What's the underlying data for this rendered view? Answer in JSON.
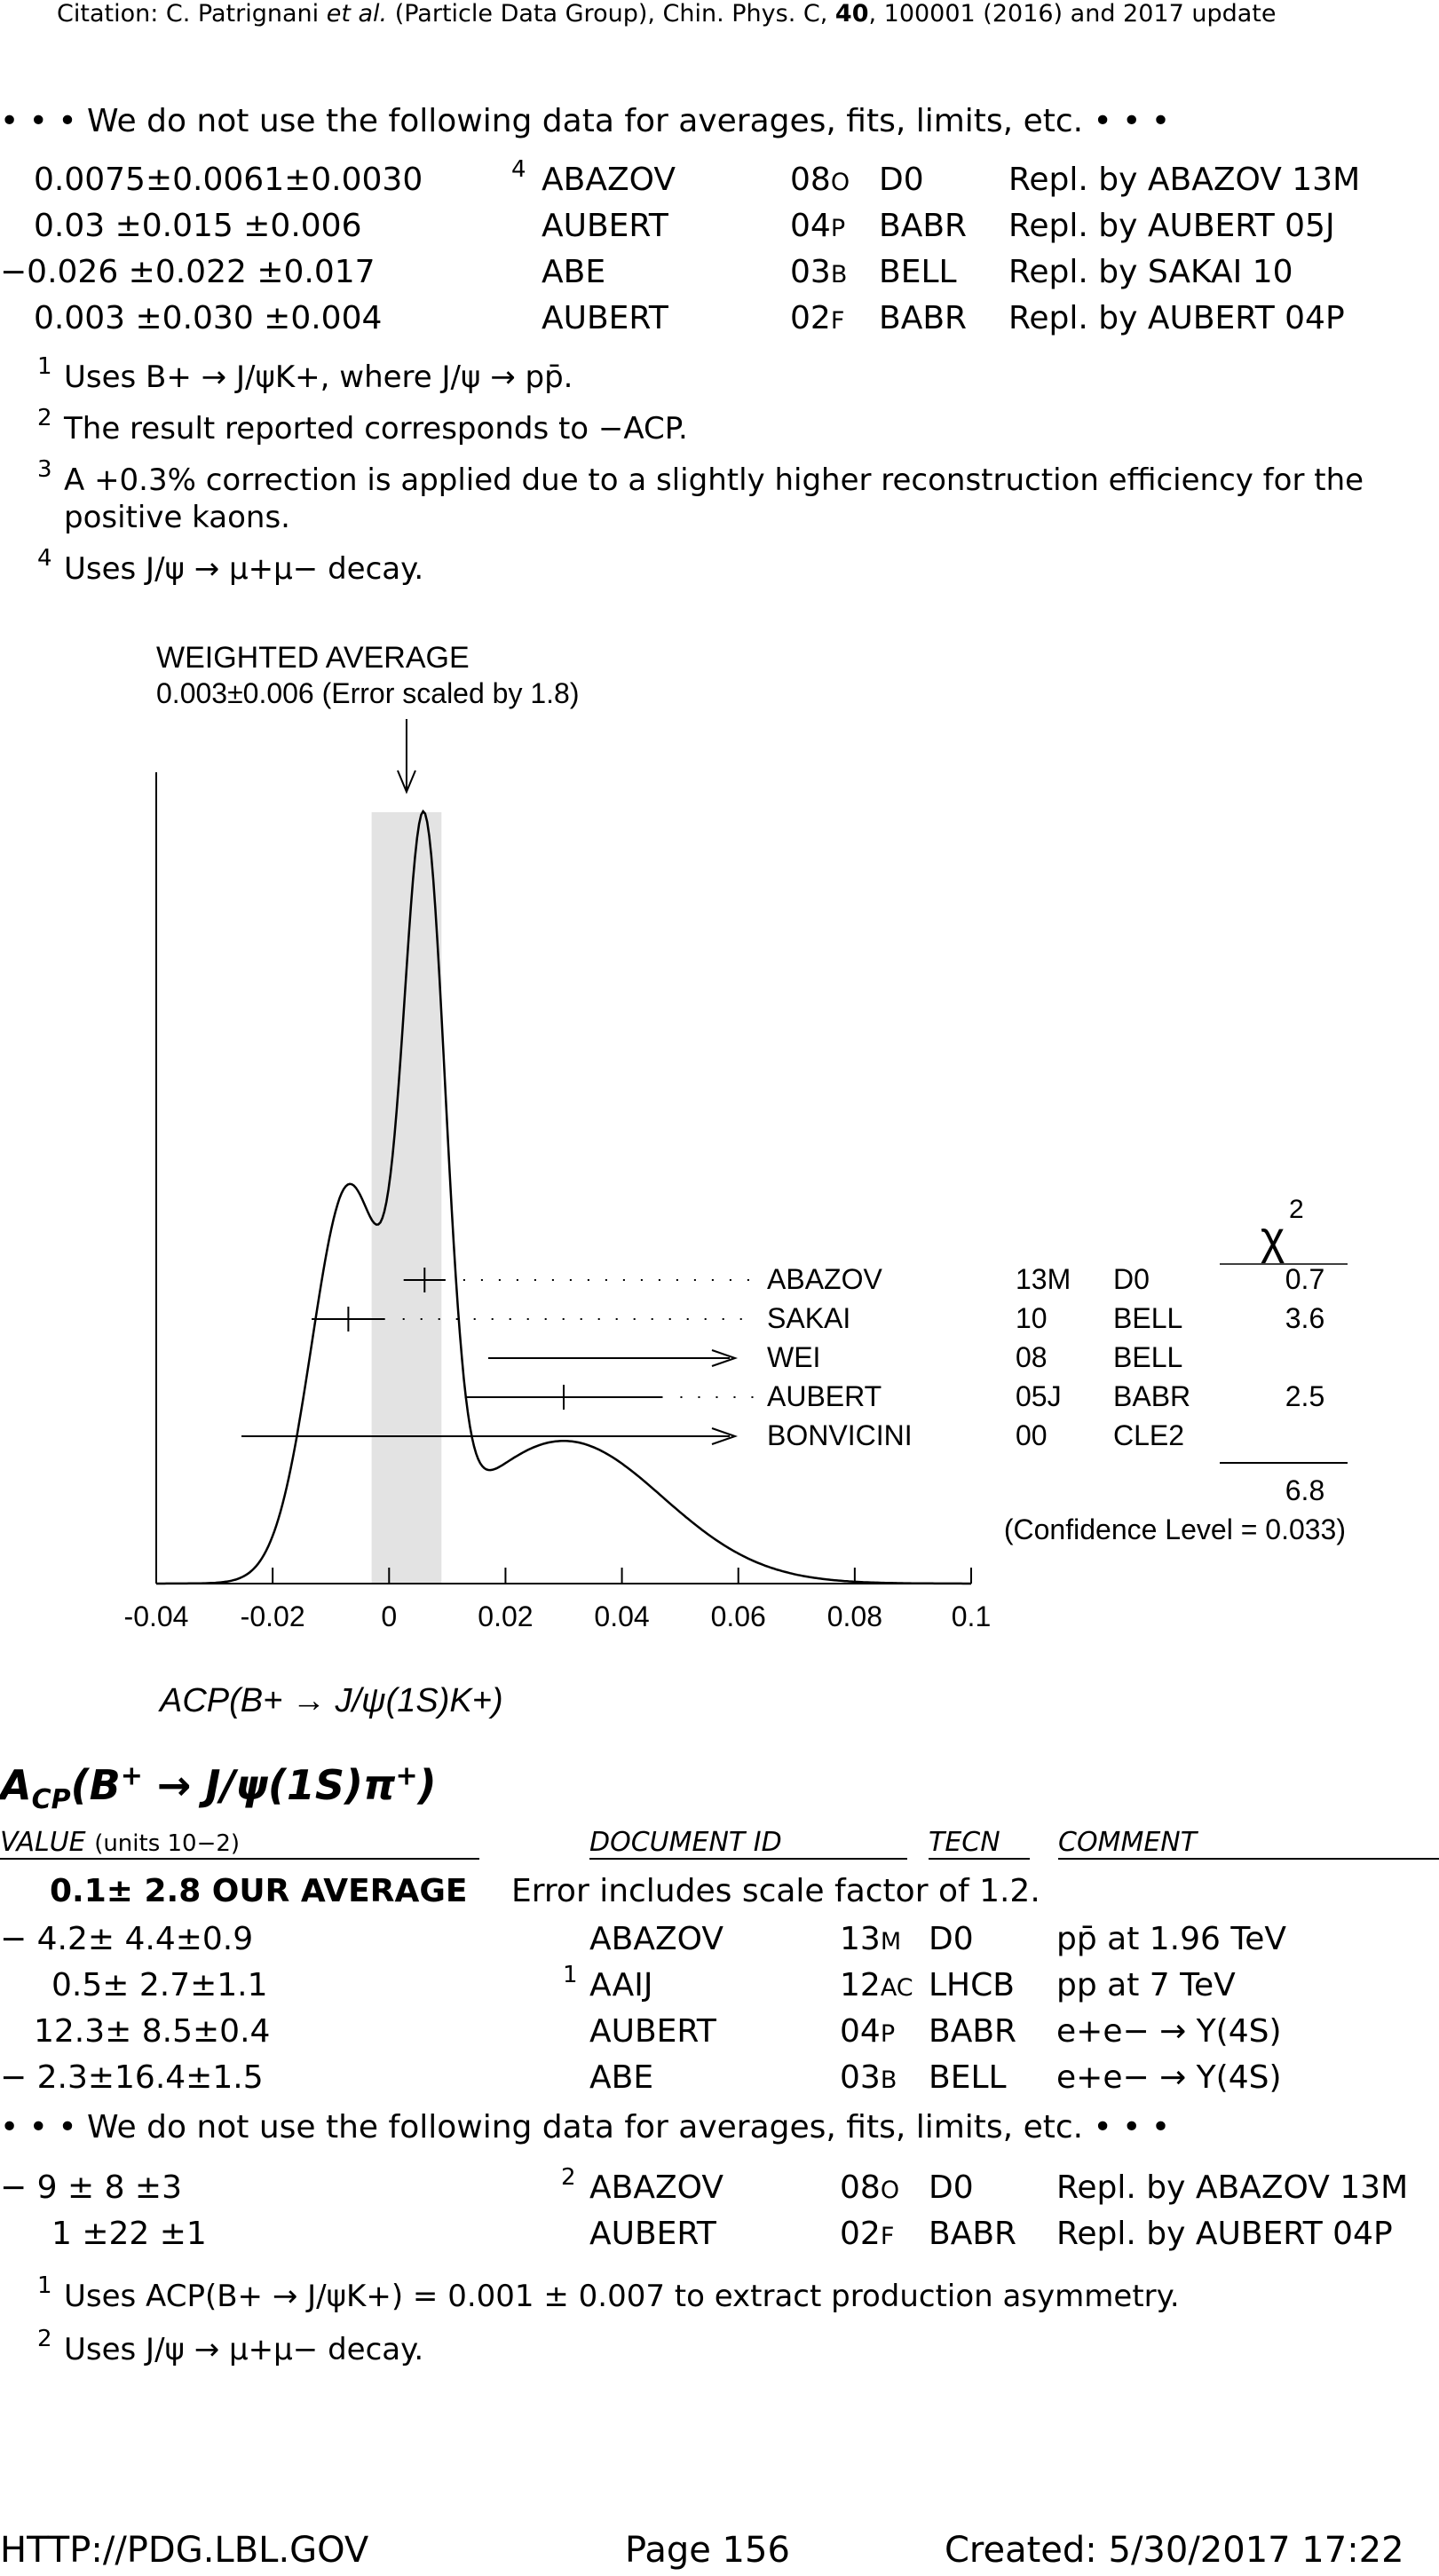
{
  "header": {
    "citation_prefix": "Citation: C. Patrignani ",
    "citation_etal": "et al.",
    "citation_mid": " (Particle Data Group), Chin. Phys. C, ",
    "citation_vol": "40",
    "citation_suffix": ", 100001 (2016) and 2017 update"
  },
  "section1": {
    "notused": "• • • We do not use the following data for averages, fits, limits, etc. • • •",
    "rows": [
      {
        "value": "0.0075±0.0061±0.0030",
        "note": "4",
        "author": "ABAZOV",
        "yr": "08",
        "ref": "O",
        "tecn": "D0",
        "comment": "Repl. by ABAZOV 13M"
      },
      {
        "value": "0.03   ±0.015 ±0.006",
        "note": "",
        "author": "AUBERT",
        "yr": "04",
        "ref": "P",
        "tecn": "BABR",
        "comment": "Repl. by AUBERT 05J"
      },
      {
        "value": "−0.026 ±0.022 ±0.017",
        "note": "",
        "author": "ABE",
        "yr": "03",
        "ref": "B",
        "tecn": "BELL",
        "comment": "Repl. by SAKAI 10"
      },
      {
        "value": "0.003 ±0.030 ±0.004",
        "note": "",
        "author": "AUBERT",
        "yr": "02",
        "ref": "F",
        "tecn": "BABR",
        "comment": "Repl. by AUBERT 04P"
      }
    ],
    "footnotes": [
      {
        "n": "1",
        "text": "Uses B+ → J/ψK+, where J/ψ → pp̄."
      },
      {
        "n": "2",
        "text": "The result reported corresponds to −ACP."
      },
      {
        "n": "3",
        "text": "A +0.3% correction is applied due to a slightly higher reconstruction efficiency for the"
      },
      {
        "n": "",
        "text": "positive kaons."
      },
      {
        "n": "4",
        "text": "Uses J/ψ → μ+μ− decay."
      }
    ]
  },
  "chart_data": {
    "type": "ideogram",
    "title": "WEIGHTED AVERAGE",
    "subtitle": "0.003±0.006 (Error scaled by 1.8)",
    "xlabel": "ACP(B+ → J/ψ(1S)K+)",
    "xlim": [
      -0.04,
      0.1
    ],
    "xticks": [
      "-0.04",
      "-0.02",
      "0",
      "0.02",
      "0.04",
      "0.06",
      "0.08",
      "0.1"
    ],
    "average": 0.003,
    "average_error": 0.006,
    "chi2_header": "χ2",
    "measurements": [
      {
        "author": "ABAZOV",
        "ref": "13M",
        "tecn": "D0",
        "value": 0.0061,
        "error": 0.0036,
        "chi2": "0.7"
      },
      {
        "author": "SAKAI",
        "ref": "10",
        "tecn": "BELL",
        "value": -0.007,
        "error": 0.0063,
        "chi2": "3.6"
      },
      {
        "author": "WEI",
        "ref": "08",
        "tecn": "BELL",
        "value": null,
        "error": null,
        "chi2": ""
      },
      {
        "author": "AUBERT",
        "ref": "05J",
        "tecn": "BABR",
        "value": 0.03,
        "error": 0.017,
        "chi2": "2.5"
      },
      {
        "author": "BONVICINI",
        "ref": "00",
        "tecn": "CLE2",
        "value": null,
        "error": null,
        "chi2": ""
      }
    ],
    "chi2_total": "6.8",
    "confidence_level": "(Confidence Level = 0.033)"
  },
  "section2": {
    "title": "ACP(B+ → J/ψ(1S)π+)",
    "col_value": "VALUE",
    "col_units": "(units 10−2)",
    "col_doc": "DOCUMENT ID",
    "col_tecn": "TECN",
    "col_comment": "COMMENT",
    "average_row": {
      "value": "0.1±  2.8 OUR AVERAGE",
      "comment": "Error includes scale factor of 1.2."
    },
    "rows": [
      {
        "value": "−  4.2±  4.4±0.9",
        "note": "",
        "author": "ABAZOV",
        "yr": "13",
        "ref": "M",
        "tecn": "D0",
        "comment": "pp̄ at 1.96 TeV"
      },
      {
        "value": "0.5±  2.7±1.1",
        "note": "1",
        "author": "AAIJ",
        "yr": "12",
        "ref": "AC",
        "tecn": "LHCB",
        "comment": "pp at 7 TeV"
      },
      {
        "value": "12.3±  8.5±0.4",
        "note": "",
        "author": "AUBERT",
        "yr": "04",
        "ref": "P",
        "tecn": "BABR",
        "comment": "e+e− → Υ(4S)"
      },
      {
        "value": "−  2.3±16.4±1.5",
        "note": "",
        "author": "ABE",
        "yr": "03",
        "ref": "B",
        "tecn": "BELL",
        "comment": "e+e− → Υ(4S)"
      }
    ],
    "notused": "• • • We do not use the following data for averages, fits, limits, etc. • • •",
    "rows2": [
      {
        "value": "−  9   ±  8   ±3",
        "note": "2",
        "author": "ABAZOV",
        "yr": "08",
        "ref": "O",
        "tecn": "D0",
        "comment": "Repl. by ABAZOV 13M"
      },
      {
        "value": "1   ±22   ±1",
        "note": "",
        "author": "AUBERT",
        "yr": "02",
        "ref": "F",
        "tecn": "BABR",
        "comment": "Repl. by AUBERT 04P"
      }
    ],
    "footnotes": [
      {
        "n": "1",
        "text": "Uses ACP(B+ → J/ψK+) = 0.001 ± 0.007 to extract production asymmetry."
      },
      {
        "n": "2",
        "text": "Uses J/ψ → μ+μ− decay."
      }
    ]
  },
  "footer": {
    "url": "HTTP://PDG.LBL.GOV",
    "page": "Page 156",
    "created": "Created: 5/30/2017 17:22"
  }
}
